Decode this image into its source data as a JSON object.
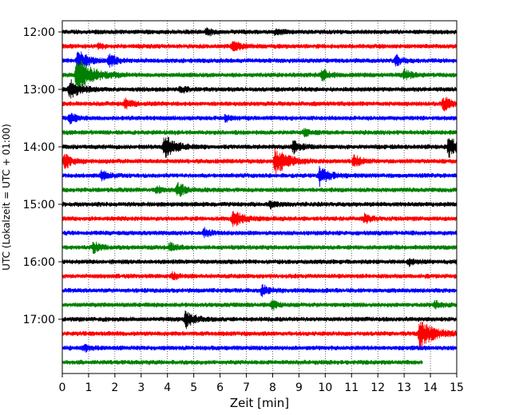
{
  "chart_data": {
    "type": "line",
    "title": "",
    "xlabel": "Zeit  [min]",
    "ylabel": "UTC (Lokalzeit = UTC + 01:00)",
    "xlim": [
      0,
      15
    ],
    "x_ticks": [
      "0",
      "1",
      "2",
      "3",
      "4",
      "5",
      "6",
      "7",
      "8",
      "9",
      "10",
      "11",
      "12",
      "13",
      "14",
      "15"
    ],
    "y_ticks": [
      "12:00",
      "13:00",
      "14:00",
      "15:00",
      "16:00",
      "17:00"
    ],
    "grid": "vertical dotted at every minute",
    "colors": [
      "#000000",
      "#ff0000",
      "#0000ff",
      "#008000"
    ],
    "trace_interval_min": 15,
    "first_trace": "12:00",
    "traces": [
      {
        "start": "12:00",
        "color": "#000000",
        "events": [
          {
            "t": 5.5,
            "amp": 0.35
          },
          {
            "t": 8.1,
            "amp": 0.25
          }
        ]
      },
      {
        "start": "12:15",
        "color": "#ff0000",
        "events": [
          {
            "t": 6.5,
            "amp": 0.45
          },
          {
            "t": 1.4,
            "amp": 0.2
          }
        ]
      },
      {
        "start": "12:30",
        "color": "#0000ff",
        "events": [
          {
            "t": 0.6,
            "amp": 0.9
          },
          {
            "t": 1.8,
            "amp": 0.5
          },
          {
            "t": 12.7,
            "amp": 0.4
          }
        ]
      },
      {
        "start": "12:45",
        "color": "#008000",
        "events": [
          {
            "t": 0.55,
            "amp": 1.6
          },
          {
            "t": 9.9,
            "amp": 0.45
          },
          {
            "t": 13.0,
            "amp": 0.5
          }
        ]
      },
      {
        "start": "13:00",
        "color": "#000000",
        "events": [
          {
            "t": 0.3,
            "amp": 0.9
          },
          {
            "t": 4.5,
            "amp": 0.3
          }
        ]
      },
      {
        "start": "13:15",
        "color": "#ff0000",
        "events": [
          {
            "t": 2.4,
            "amp": 0.4
          },
          {
            "t": 14.5,
            "amp": 0.6
          }
        ]
      },
      {
        "start": "13:30",
        "color": "#0000ff",
        "events": [
          {
            "t": 0.3,
            "amp": 0.4
          },
          {
            "t": 6.2,
            "amp": 0.3
          }
        ]
      },
      {
        "start": "13:45",
        "color": "#008000",
        "events": [
          {
            "t": 9.2,
            "amp": 0.3
          }
        ]
      },
      {
        "start": "14:00",
        "color": "#000000",
        "events": [
          {
            "t": 3.9,
            "amp": 1.0
          },
          {
            "t": 8.8,
            "amp": 0.5
          },
          {
            "t": 14.7,
            "amp": 0.9
          }
        ]
      },
      {
        "start": "14:15",
        "color": "#ff0000",
        "events": [
          {
            "t": 0.1,
            "amp": 0.6
          },
          {
            "t": 8.1,
            "amp": 1.2
          },
          {
            "t": 11.1,
            "amp": 0.5
          }
        ]
      },
      {
        "start": "14:30",
        "color": "#0000ff",
        "events": [
          {
            "t": 1.5,
            "amp": 0.4
          },
          {
            "t": 9.8,
            "amp": 0.8
          }
        ]
      },
      {
        "start": "14:45",
        "color": "#008000",
        "events": [
          {
            "t": 4.4,
            "amp": 0.6
          },
          {
            "t": 3.6,
            "amp": 0.3
          }
        ]
      },
      {
        "start": "15:00",
        "color": "#000000",
        "events": [
          {
            "t": 7.9,
            "amp": 0.35
          }
        ]
      },
      {
        "start": "15:15",
        "color": "#ff0000",
        "events": [
          {
            "t": 6.5,
            "amp": 0.8
          },
          {
            "t": 11.5,
            "amp": 0.4
          }
        ]
      },
      {
        "start": "15:30",
        "color": "#0000ff",
        "events": [
          {
            "t": 5.4,
            "amp": 0.35
          }
        ]
      },
      {
        "start": "15:45",
        "color": "#008000",
        "events": [
          {
            "t": 1.2,
            "amp": 0.45
          },
          {
            "t": 4.1,
            "amp": 0.35
          }
        ]
      },
      {
        "start": "16:00",
        "color": "#000000",
        "events": [
          {
            "t": 13.2,
            "amp": 0.3
          }
        ]
      },
      {
        "start": "16:15",
        "color": "#ff0000",
        "events": [
          {
            "t": 4.2,
            "amp": 0.3
          }
        ]
      },
      {
        "start": "16:30",
        "color": "#0000ff",
        "events": [
          {
            "t": 7.6,
            "amp": 0.45
          }
        ]
      },
      {
        "start": "16:45",
        "color": "#008000",
        "events": [
          {
            "t": 8.0,
            "amp": 0.35
          },
          {
            "t": 14.2,
            "amp": 0.3
          }
        ]
      },
      {
        "start": "17:00",
        "color": "#000000",
        "events": [
          {
            "t": 4.7,
            "amp": 0.7
          }
        ]
      },
      {
        "start": "17:15",
        "color": "#ff0000",
        "events": [
          {
            "t": 13.6,
            "amp": 1.3
          }
        ]
      },
      {
        "start": "17:30",
        "color": "#0000ff",
        "events": [
          {
            "t": 0.8,
            "amp": 0.35
          }
        ]
      },
      {
        "start": "17:45",
        "color": "#008000",
        "events": [],
        "end_min": 13.7
      }
    ]
  }
}
